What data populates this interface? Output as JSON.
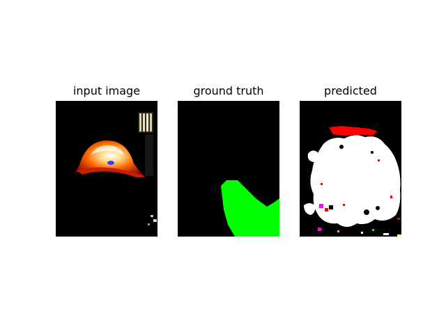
{
  "panels": [
    {
      "title": "input image"
    },
    {
      "title": "ground truth"
    },
    {
      "title": "predicted"
    }
  ],
  "colors": {
    "background": "#ffffff",
    "panel_background": "#000000",
    "ground_truth_region": "#00ff00",
    "prediction_main": "#ffffff",
    "prediction_accent": "#ff0000",
    "prediction_magenta": "#ff00ff"
  }
}
